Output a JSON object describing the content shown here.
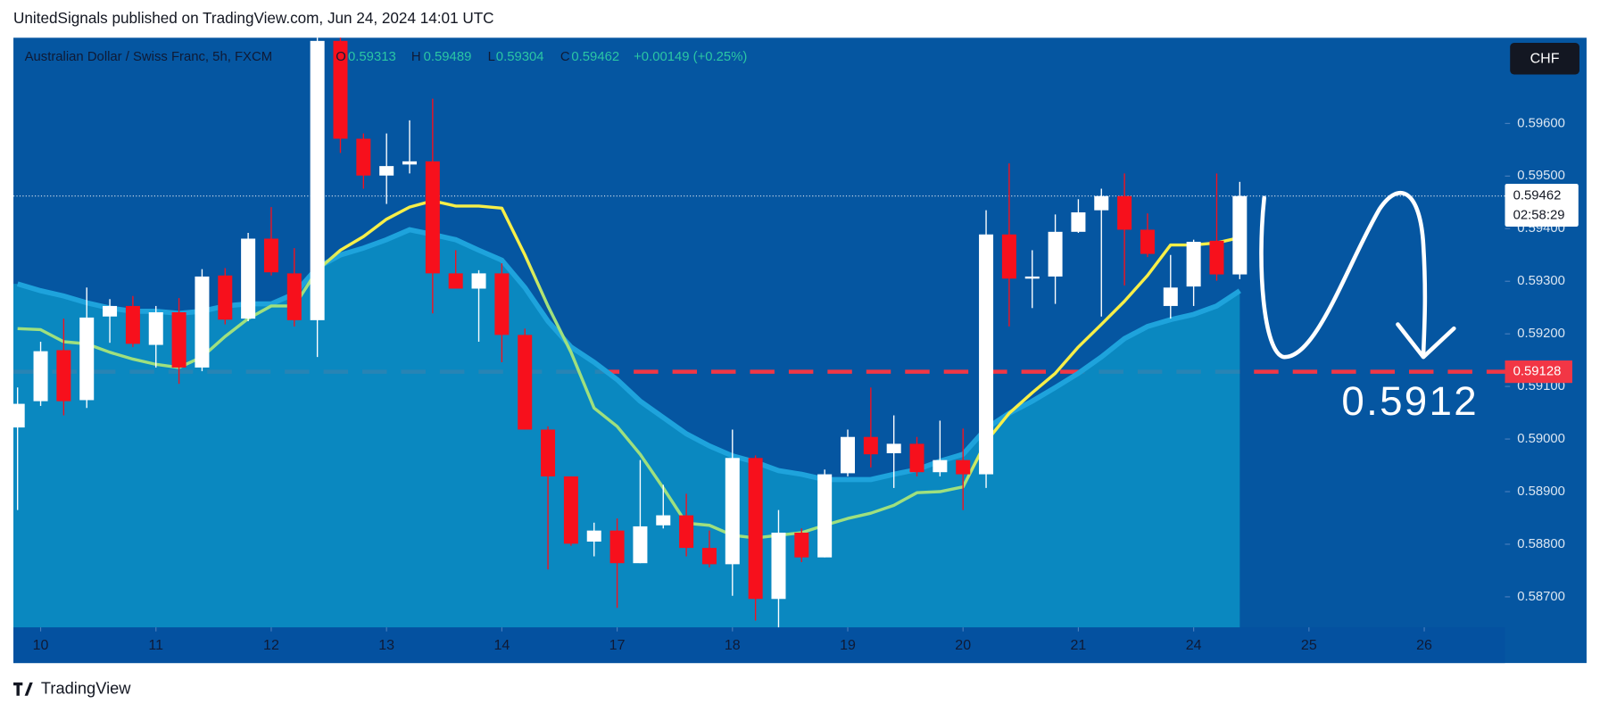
{
  "header": {
    "published": "UnitedSignals published on TradingView.com, Jun 24, 2024 14:01 UTC",
    "footer": "TradingView"
  },
  "chart_data": {
    "type": "candlestick",
    "title": "Australian Dollar / Swiss Franc, 5h, FXCM",
    "ohlc_labels": [
      "O",
      "H",
      "L",
      "C"
    ],
    "change": "+0.00149 (+0.25%)",
    "currency": "CHF",
    "last_price_countdown": "02:58:29",
    "annotation": "0.5912",
    "open": [
      0.59022,
      0.59072,
      0.59169,
      0.59074,
      0.59233,
      0.59253,
      0.59179,
      0.59241,
      0.59136,
      0.59311,
      0.59229,
      0.59381,
      0.59315,
      0.59226,
      0.59757,
      0.59571,
      0.59501,
      0.59522,
      0.59528,
      0.59315,
      0.59286,
      0.59315,
      0.59198,
      0.59018,
      0.58929,
      0.58805,
      0.58826,
      0.58764,
      0.58836,
      0.58855,
      0.58793,
      0.58762,
      0.58964,
      0.58696,
      0.58822,
      0.58775,
      0.58935,
      0.59004,
      0.58973,
      0.58991,
      0.58937,
      0.5896,
      0.58933,
      0.59389,
      0.59305,
      0.59309,
      0.59394,
      0.59435,
      0.59462,
      0.59398,
      0.59253,
      0.5929,
      0.59377,
      0.59313
    ],
    "high": [
      0.59098,
      0.59185,
      0.59229,
      0.59288,
      0.59266,
      0.59272,
      0.59253,
      0.59268,
      0.59323,
      0.59325,
      0.59392,
      0.59441,
      0.59363,
      0.59763,
      0.59763,
      0.59581,
      0.59581,
      0.59606,
      0.59647,
      0.59359,
      0.59321,
      0.59334,
      0.5921,
      0.59024,
      0.58929,
      0.58841,
      0.58849,
      0.5896,
      0.58913,
      0.58896,
      0.58826,
      0.59018,
      0.58969,
      0.58865,
      0.5883,
      0.58942,
      0.59018,
      0.59098,
      0.59045,
      0.59004,
      0.59035,
      0.5902,
      0.59435,
      0.59524,
      0.59359,
      0.59427,
      0.59456,
      0.59476,
      0.59505,
      0.59429,
      0.5935,
      0.59379,
      0.59505,
      0.59489
    ],
    "low": [
      0.58865,
      0.59063,
      0.59045,
      0.59059,
      0.59183,
      0.59175,
      0.59136,
      0.59105,
      0.59129,
      0.59218,
      0.59224,
      0.59311,
      0.59214,
      0.59156,
      0.59544,
      0.59476,
      0.59447,
      0.59505,
      0.59239,
      0.59286,
      0.59185,
      0.59146,
      0.59018,
      0.58752,
      0.58797,
      0.58777,
      0.58679,
      0.58764,
      0.5883,
      0.58777,
      0.58756,
      0.58702,
      0.58655,
      0.58642,
      0.58766,
      0.58775,
      0.58929,
      0.58946,
      0.58907,
      0.58929,
      0.58929,
      0.58865,
      0.58907,
      0.59214,
      0.59249,
      0.59257,
      0.59392,
      0.59233,
      0.59292,
      0.59346,
      0.59229,
      0.59253,
      0.59301,
      0.59304
    ],
    "close": [
      0.59067,
      0.59167,
      0.59072,
      0.59231,
      0.59253,
      0.59181,
      0.59241,
      0.59136,
      0.59309,
      0.59227,
      0.59381,
      0.59317,
      0.59226,
      0.59757,
      0.59571,
      0.59501,
      0.59519,
      0.59528,
      0.59315,
      0.59286,
      0.59315,
      0.59198,
      0.59018,
      0.58929,
      0.58801,
      0.58826,
      0.58764,
      0.58834,
      0.58855,
      0.58793,
      0.58762,
      0.58964,
      0.58696,
      0.58822,
      0.58775,
      0.58933,
      0.59004,
      0.58971,
      0.58991,
      0.58937,
      0.5896,
      0.58933,
      0.59389,
      0.59305,
      0.59309,
      0.59394,
      0.59431,
      0.59462,
      0.59398,
      0.59352,
      0.59288,
      0.59375,
      0.59313,
      0.59462
    ],
    "up_color": "#ffffff",
    "down_color": "#f7101c",
    "ema_line": {
      "values": [
        0.5921,
        0.59208,
        0.59185,
        0.59181,
        0.59165,
        0.59152,
        0.59142,
        0.59136,
        0.59156,
        0.59195,
        0.59229,
        0.59253,
        0.59253,
        0.59321,
        0.59359,
        0.59385,
        0.59418,
        0.59441,
        0.59453,
        0.59443,
        0.59443,
        0.59439,
        0.5935,
        0.59253,
        0.59165,
        0.59059,
        0.59024,
        0.58971,
        0.58907,
        0.5884,
        0.58836,
        0.58817,
        0.58812,
        0.58817,
        0.58822,
        0.58836,
        0.58849,
        0.58859,
        0.58874,
        0.58898,
        0.589,
        0.58909,
        0.58995,
        0.59049,
        0.59088,
        0.59125,
        0.59175,
        0.59218,
        0.59262,
        0.59311,
        0.59369,
        0.59369,
        0.59373,
        0.59383
      ],
      "colors": [
        "#9fe07e",
        "#9fe07e",
        "#9fe07e",
        "#9fe07e",
        "#9fe07e",
        "#9fe07e",
        "#9fe07e",
        "#9fe07e",
        "#9fe07e",
        "#9fe07e",
        "#9fe07e",
        "#9fe07e",
        "#9fe07e",
        "#9fe07e",
        "#f7ef48",
        "#f7ef48",
        "#f7ef48",
        "#f7ef48",
        "#f7ef48",
        "#f7ef48",
        "#f7ef48",
        "#f7ef48",
        "#f7ef48",
        "#9fe07e",
        "#9fe07e",
        "#9fe07e",
        "#9fe07e",
        "#9fe07e",
        "#9fe07e",
        "#9fe07e",
        "#9fe07e",
        "#9fe07e",
        "#9fe07e",
        "#9fe07e",
        "#9fe07e",
        "#9fe07e",
        "#9fe07e",
        "#9fe07e",
        "#9fe07e",
        "#9fe07e",
        "#9fe07e",
        "#9fe07e",
        "#f7ef48",
        "#f7ef48",
        "#f7ef48",
        "#f7ef48",
        "#f7ef48",
        "#f7ef48",
        "#f7ef48",
        "#f7ef48",
        "#f7ef48",
        "#f7ef48",
        "#f7ef48",
        "#f7ef48"
      ]
    },
    "ema_band": {
      "values": [
        0.59295,
        0.59282,
        0.59272,
        0.59259,
        0.59249,
        0.59243,
        0.59243,
        0.59239,
        0.59243,
        0.59253,
        0.59257,
        0.59257,
        0.59276,
        0.59326,
        0.5935,
        0.59363,
        0.59379,
        0.59398,
        0.59389,
        0.59379,
        0.59359,
        0.5934,
        0.59288,
        0.59224,
        0.59175,
        0.59146,
        0.59113,
        0.59072,
        0.59041,
        0.5901,
        0.58987,
        0.58968,
        0.58956,
        0.5894,
        0.58933,
        0.58923,
        0.58923,
        0.58923,
        0.58933,
        0.58942,
        0.58958,
        0.58971,
        0.5902,
        0.59049,
        0.59072,
        0.59098,
        0.59125,
        0.59156,
        0.59191,
        0.59214,
        0.59227,
        0.59237,
        0.59253,
        0.59282
      ],
      "color": "#0b8fc4",
      "line_color": "#1ea3dc"
    },
    "levels": [
      {
        "value": 0.59128,
        "color": "#f23645"
      }
    ],
    "xlim": [
      -0.18,
      64.5
    ],
    "xticks": [
      {
        "value": 1,
        "label": "10"
      },
      {
        "value": 6,
        "label": "11"
      },
      {
        "value": 11,
        "label": "12"
      },
      {
        "value": 16,
        "label": "13"
      },
      {
        "value": 21,
        "label": "14"
      },
      {
        "value": 26,
        "label": "17"
      },
      {
        "value": 31,
        "label": "18"
      },
      {
        "value": 36,
        "label": "19"
      },
      {
        "value": 41,
        "label": "20"
      },
      {
        "value": 46,
        "label": "21"
      },
      {
        "value": 51,
        "label": "24"
      },
      {
        "value": 56,
        "label": "25"
      },
      {
        "value": 61,
        "label": "26"
      }
    ],
    "ylim": [
      0.58642,
      0.59763
    ],
    "yticks": [
      {
        "value": 0.587,
        "label": "0.58700"
      },
      {
        "value": 0.588,
        "label": "0.58800"
      },
      {
        "value": 0.589,
        "label": "0.58900"
      },
      {
        "value": 0.59,
        "label": "0.59000"
      },
      {
        "value": 0.591,
        "label": "0.59100"
      },
      {
        "value": 0.592,
        "label": "0.59200"
      },
      {
        "value": 0.593,
        "label": "0.59300"
      },
      {
        "value": 0.594,
        "label": "0.59400"
      },
      {
        "value": 0.595,
        "label": "0.59500"
      },
      {
        "value": 0.596,
        "label": "0.59600"
      }
    ],
    "grid": false
  }
}
